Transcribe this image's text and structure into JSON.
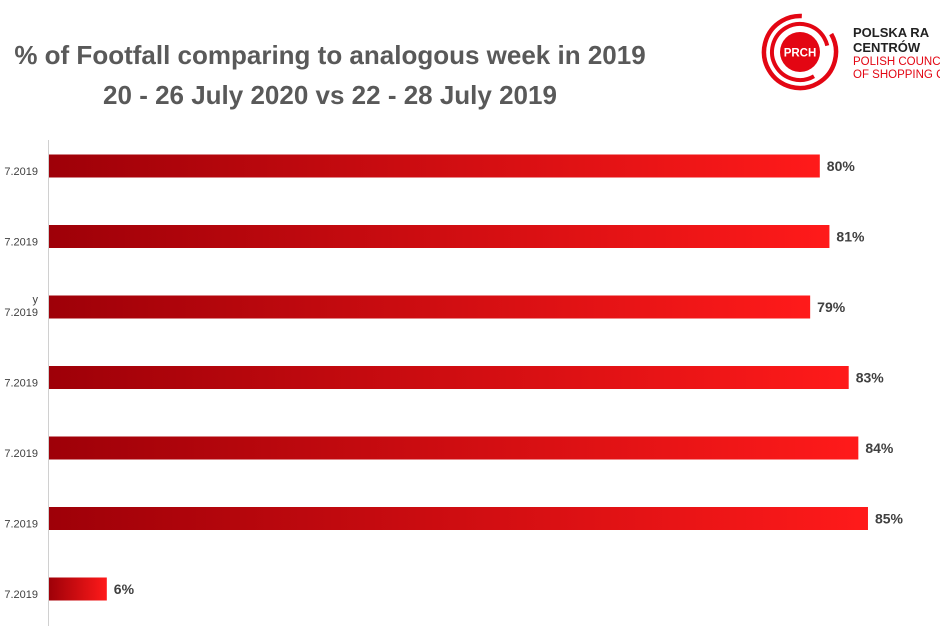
{
  "title": {
    "line1": "% of Footfall comparing to analogous week in 2019",
    "line2": "20 - 26 July 2020 vs 22 - 28 July 2019"
  },
  "logo": {
    "badge": "PRCH",
    "line1": "POLSKA RA",
    "line2": "CENTRÓW",
    "line3": "POLISH COUNC",
    "line4": "OF SHOPPING C"
  },
  "colors": {
    "bar_dark": "#9e0008",
    "bar_light": "#ff1a1a",
    "logo_red": "#e30613"
  },
  "chart_data": {
    "type": "bar",
    "orientation": "horizontal",
    "title": "% of Footfall comparing to analogous week in 2019",
    "subtitle": "20 - 26 July 2020 vs 22 - 28 July 2019",
    "categories": [
      {
        "lines": [
          "7.2019"
        ]
      },
      {
        "lines": [
          "7.2019"
        ]
      },
      {
        "lines": [
          "y",
          "7.2019"
        ]
      },
      {
        "lines": [
          "7.2019"
        ]
      },
      {
        "lines": [
          "7.2019"
        ]
      },
      {
        "lines": [
          "7.2019"
        ]
      },
      {
        "lines": [
          "7.2019"
        ]
      }
    ],
    "values": [
      80,
      81,
      79,
      83,
      84,
      85,
      6
    ],
    "value_labels": [
      "80%",
      "81%",
      "79%",
      "83%",
      "84%",
      "85%",
      "6%"
    ],
    "xlim": [
      0,
      100
    ],
    "grid": false,
    "legend": "none"
  }
}
